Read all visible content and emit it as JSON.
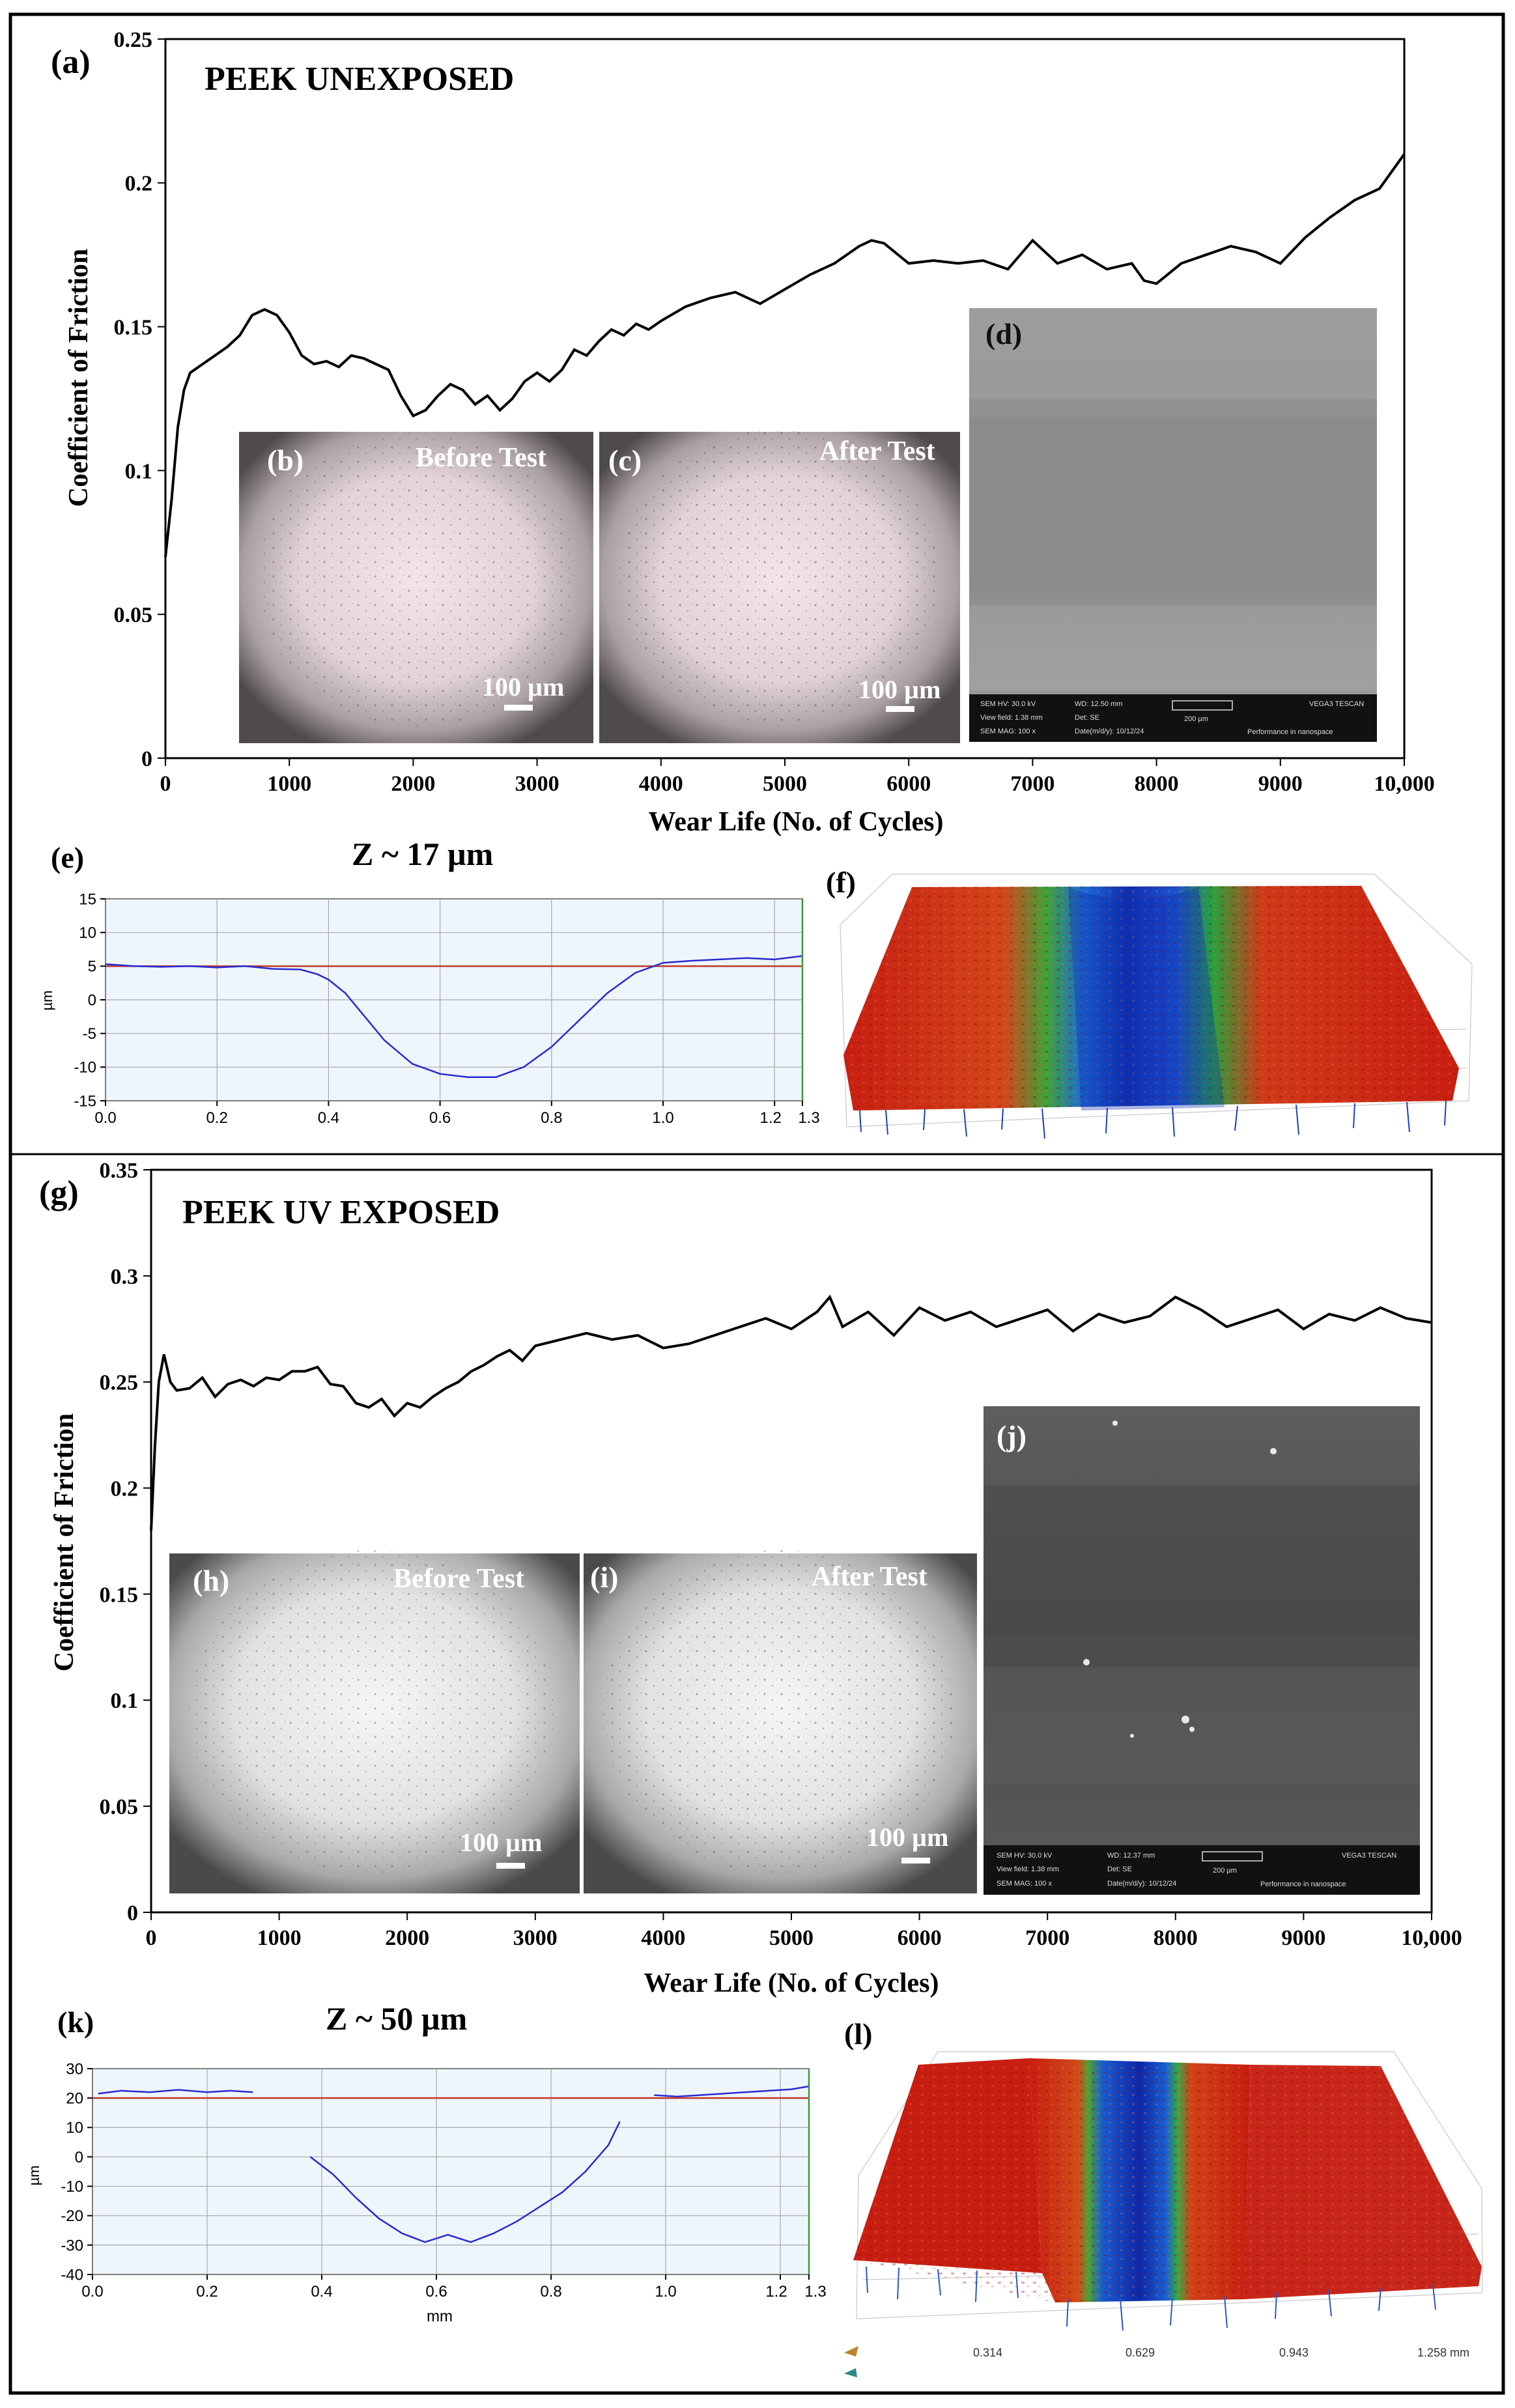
{
  "panels": {
    "a": {
      "letter": "(a)",
      "title": "PEEK UNEXPOSED",
      "ylabel": "Coefficient of Friction",
      "xlabel": "Wear Life (No. of Cycles)"
    },
    "b": {
      "letter": "(b)",
      "caption": "Before Test",
      "scale": "100 µm"
    },
    "c": {
      "letter": "(c)",
      "caption": "After Test",
      "scale": "100 µm"
    },
    "d": {
      "letter": "(d)",
      "sem": [
        "SEM HV: 30.0 kV",
        "WD: 12.50 mm",
        "View field: 1.38 mm",
        "Det: SE",
        "200 µm",
        "SEM MAG: 100 x",
        "Date(m/d/y): 10/12/24",
        "VEGA3 TESCAN",
        "Performance in nanospace"
      ]
    },
    "e": {
      "letter": "(e)",
      "title": "Z ~ 17 µm",
      "ylabel": "µm"
    },
    "f": {
      "letter": "(f)"
    },
    "g": {
      "letter": "(g)",
      "title": "PEEK UV EXPOSED",
      "ylabel": "Coefficient of Friction",
      "xlabel": "Wear Life (No. of Cycles)"
    },
    "h": {
      "letter": "(h)",
      "caption": "Before Test",
      "scale": "100 µm"
    },
    "i": {
      "letter": "(i)",
      "caption": "After Test",
      "scale": "100 µm"
    },
    "j": {
      "letter": "(j)",
      "sem": [
        "SEM HV: 30.0 kV",
        "WD: 12.37 mm",
        "View field: 1.38 mm",
        "Det: SE",
        "200 µm",
        "SEM MAG: 100 x",
        "Date(m/d/y): 10/12/24",
        "VEGA3 TESCAN",
        "Performance in nanospace"
      ]
    },
    "k": {
      "letter": "(k)",
      "title": "Z ~ 50 µm",
      "ylabel": "µm",
      "xlabel": "mm"
    },
    "l": {
      "letter": "(l)",
      "axis_ticks": [
        "0.314",
        "0.629",
        "0.943",
        "1.258 mm"
      ]
    }
  },
  "colors": {
    "curve": "#000000",
    "profile": "#2a2ad0",
    "reference": "#c0392b",
    "profile_bg": "#eef6fc",
    "grid": "#a9a9a9",
    "frame_right": "#3a9a3a"
  },
  "chart_data": [
    {
      "id": "a",
      "type": "line",
      "title": "PEEK UNEXPOSED",
      "xlabel": "Wear Life (No. of Cycles)",
      "ylabel": "Coefficient of Friction",
      "xlim": [
        0,
        10000
      ],
      "ylim": [
        0,
        0.25
      ],
      "xticks": [
        0,
        1000,
        2000,
        3000,
        4000,
        5000,
        6000,
        7000,
        8000,
        9000,
        10000
      ],
      "xtick_labels": [
        "0",
        "1000",
        "2000",
        "3000",
        "4000",
        "5000",
        "6000",
        "7000",
        "8000",
        "9000",
        "10,000"
      ],
      "yticks": [
        0,
        0.05,
        0.1,
        0.15,
        0.2,
        0.25
      ],
      "ytick_labels": [
        "0",
        "0.05",
        "0.1",
        "0.15",
        "0.2",
        "0.25"
      ],
      "series": [
        {
          "name": "COF",
          "x": [
            0,
            50,
            100,
            150,
            200,
            300,
            400,
            500,
            600,
            700,
            800,
            900,
            1000,
            1100,
            1200,
            1300,
            1400,
            1500,
            1600,
            1700,
            1800,
            1900,
            2000,
            2100,
            2200,
            2300,
            2400,
            2500,
            2600,
            2700,
            2800,
            2900,
            3000,
            3100,
            3200,
            3300,
            3400,
            3500,
            3600,
            3700,
            3800,
            3900,
            4000,
            4200,
            4400,
            4600,
            4800,
            5000,
            5200,
            5400,
            5600,
            5700,
            5800,
            6000,
            6200,
            6400,
            6600,
            6800,
            7000,
            7200,
            7400,
            7600,
            7800,
            7900,
            8000,
            8200,
            8400,
            8600,
            8800,
            9000,
            9200,
            9400,
            9600,
            9800,
            10000
          ],
          "y": [
            0.07,
            0.09,
            0.115,
            0.128,
            0.134,
            0.137,
            0.14,
            0.143,
            0.147,
            0.154,
            0.156,
            0.154,
            0.148,
            0.14,
            0.137,
            0.138,
            0.136,
            0.14,
            0.139,
            0.137,
            0.135,
            0.126,
            0.119,
            0.121,
            0.126,
            0.13,
            0.128,
            0.123,
            0.126,
            0.121,
            0.125,
            0.131,
            0.134,
            0.131,
            0.135,
            0.142,
            0.14,
            0.145,
            0.149,
            0.147,
            0.151,
            0.149,
            0.152,
            0.157,
            0.16,
            0.162,
            0.158,
            0.163,
            0.168,
            0.172,
            0.178,
            0.18,
            0.179,
            0.172,
            0.173,
            0.172,
            0.173,
            0.17,
            0.18,
            0.172,
            0.175,
            0.17,
            0.172,
            0.166,
            0.165,
            0.172,
            0.175,
            0.178,
            0.176,
            0.172,
            0.181,
            0.188,
            0.194,
            0.198,
            0.21
          ]
        }
      ]
    },
    {
      "id": "g",
      "type": "line",
      "title": "PEEK UV EXPOSED",
      "xlabel": "Wear Life (No. of Cycles)",
      "ylabel": "Coefficient of Friction",
      "xlim": [
        0,
        10000
      ],
      "ylim": [
        0,
        0.35
      ],
      "xticks": [
        0,
        1000,
        2000,
        3000,
        4000,
        5000,
        6000,
        7000,
        8000,
        9000,
        10000
      ],
      "xtick_labels": [
        "0",
        "1000",
        "2000",
        "3000",
        "4000",
        "5000",
        "6000",
        "7000",
        "8000",
        "9000",
        "10,000"
      ],
      "yticks": [
        0,
        0.05,
        0.1,
        0.15,
        0.2,
        0.25,
        0.3,
        0.35
      ],
      "ytick_labels": [
        "0",
        "0.05",
        "0.1",
        "0.15",
        "0.2",
        "0.25",
        "0.3",
        "0.35"
      ],
      "series": [
        {
          "name": "COF",
          "x": [
            0,
            30,
            60,
            100,
            150,
            200,
            300,
            400,
            500,
            600,
            700,
            800,
            900,
            1000,
            1100,
            1200,
            1300,
            1400,
            1500,
            1600,
            1700,
            1800,
            1900,
            2000,
            2100,
            2200,
            2300,
            2400,
            2500,
            2600,
            2700,
            2800,
            2900,
            3000,
            3200,
            3400,
            3600,
            3800,
            4000,
            4200,
            4400,
            4600,
            4800,
            5000,
            5200,
            5300,
            5400,
            5600,
            5800,
            6000,
            6200,
            6400,
            6600,
            6800,
            7000,
            7200,
            7400,
            7600,
            7800,
            8000,
            8200,
            8400,
            8600,
            8800,
            9000,
            9200,
            9400,
            9600,
            9800,
            10000
          ],
          "y": [
            0.18,
            0.22,
            0.25,
            0.263,
            0.25,
            0.246,
            0.247,
            0.252,
            0.243,
            0.249,
            0.251,
            0.248,
            0.252,
            0.251,
            0.255,
            0.255,
            0.257,
            0.249,
            0.248,
            0.24,
            0.238,
            0.242,
            0.234,
            0.24,
            0.238,
            0.243,
            0.247,
            0.25,
            0.255,
            0.258,
            0.262,
            0.265,
            0.26,
            0.267,
            0.27,
            0.273,
            0.27,
            0.272,
            0.266,
            0.268,
            0.272,
            0.276,
            0.28,
            0.275,
            0.283,
            0.29,
            0.276,
            0.283,
            0.272,
            0.285,
            0.279,
            0.283,
            0.276,
            0.28,
            0.284,
            0.274,
            0.282,
            0.278,
            0.281,
            0.29,
            0.284,
            0.276,
            0.28,
            0.284,
            0.275,
            0.282,
            0.279,
            0.285,
            0.28,
            0.278
          ]
        }
      ]
    },
    {
      "id": "e",
      "type": "line",
      "title": "Z ~ 17 µm",
      "ylabel": "µm",
      "xlim": [
        0,
        1.25
      ],
      "ylim": [
        -15,
        15
      ],
      "xticks": [
        0,
        0.2,
        0.4,
        0.6,
        0.8,
        1.0,
        1.2,
        1.25
      ],
      "xtick_labels": [
        "0.0",
        "0.2",
        "0.4",
        "0.6",
        "0.8",
        "1.0",
        "1.2",
        "1.3"
      ],
      "yticks": [
        -15,
        -10,
        -5,
        0,
        5,
        10,
        15
      ],
      "ytick_labels": [
        "-15",
        "-10",
        "-5",
        "0",
        "5",
        "10",
        "15"
      ],
      "reference": 5,
      "series": [
        {
          "name": "profile",
          "x": [
            0,
            0.05,
            0.1,
            0.15,
            0.2,
            0.25,
            0.3,
            0.35,
            0.38,
            0.4,
            0.43,
            0.46,
            0.5,
            0.55,
            0.6,
            0.65,
            0.7,
            0.75,
            0.8,
            0.85,
            0.9,
            0.95,
            1.0,
            1.05,
            1.1,
            1.15,
            1.2,
            1.25
          ],
          "y": [
            5.3,
            5.0,
            4.9,
            5.0,
            4.8,
            5.0,
            4.6,
            4.5,
            3.8,
            3.0,
            1.0,
            -2.0,
            -6.0,
            -9.5,
            -11.0,
            -11.5,
            -11.5,
            -10.0,
            -7.0,
            -3.0,
            1.0,
            4.0,
            5.5,
            5.8,
            6.0,
            6.2,
            6.0,
            6.5
          ]
        }
      ]
    },
    {
      "id": "k",
      "type": "line",
      "title": "Z ~ 50 µm",
      "ylabel": "µm",
      "xlabel": "mm",
      "xlim": [
        0,
        1.25
      ],
      "ylim": [
        -40,
        30
      ],
      "xticks": [
        0,
        0.2,
        0.4,
        0.6,
        0.8,
        1.0,
        1.2,
        1.25
      ],
      "xtick_labels": [
        "0.0",
        "0.2",
        "0.4",
        "0.6",
        "0.8",
        "1.0",
        "1.2",
        "1.3"
      ],
      "yticks": [
        -40,
        -30,
        -20,
        -10,
        0,
        10,
        20,
        30
      ],
      "ytick_labels": [
        "-40",
        "-30",
        "-20",
        "-10",
        "0",
        "10",
        "20",
        "30"
      ],
      "reference": 20,
      "series": [
        {
          "name": "left plateau",
          "x": [
            0.01,
            0.05,
            0.1,
            0.15,
            0.2,
            0.24,
            0.28
          ],
          "y": [
            21.5,
            22.5,
            22.0,
            22.8,
            22.0,
            22.5,
            22.0
          ]
        },
        {
          "name": "wear track",
          "x": [
            0.38,
            0.42,
            0.46,
            0.5,
            0.54,
            0.58,
            0.62,
            0.66,
            0.7,
            0.74,
            0.78,
            0.82,
            0.86,
            0.9,
            0.92
          ],
          "y": [
            0.0,
            -6.0,
            -14.0,
            -21.0,
            -26.0,
            -29.0,
            -26.5,
            -29.0,
            -26.0,
            -22.0,
            -17.0,
            -12.0,
            -5.0,
            4.0,
            12.0
          ]
        },
        {
          "name": "right plateau",
          "x": [
            0.98,
            1.02,
            1.06,
            1.1,
            1.14,
            1.18,
            1.22,
            1.25
          ],
          "y": [
            21.0,
            20.5,
            21.0,
            21.5,
            22.0,
            22.5,
            23.0,
            24.0
          ]
        }
      ]
    }
  ]
}
